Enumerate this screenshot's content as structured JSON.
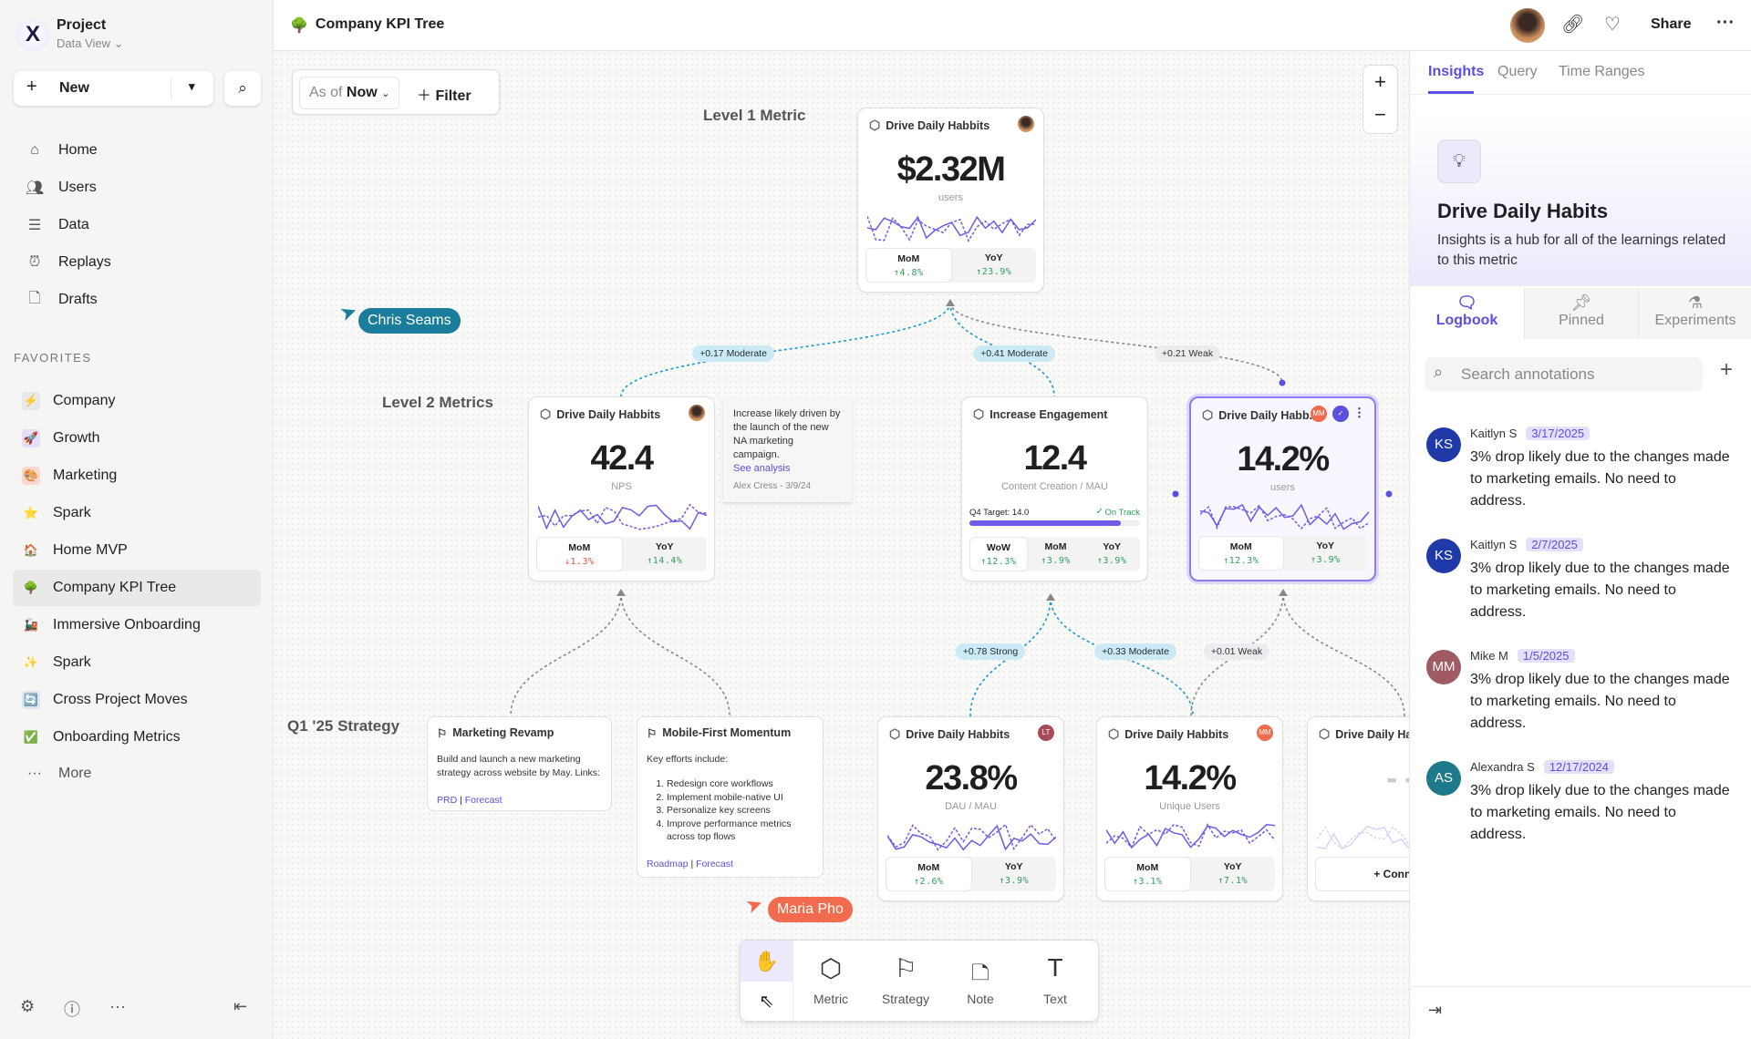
{
  "sidebar": {
    "project": "Project",
    "view": "Data View",
    "new_label": "New",
    "nav": [
      {
        "label": "Home",
        "icon": "home-icon"
      },
      {
        "label": "Users",
        "icon": "users-icon"
      },
      {
        "label": "Data",
        "icon": "database-icon"
      },
      {
        "label": "Replays",
        "icon": "alarm-clock-icon"
      },
      {
        "label": "Drafts",
        "icon": "file-icon"
      }
    ],
    "favorites_label": "FAVORITES",
    "favorites": [
      {
        "label": "Company",
        "emoji": "⚡",
        "bg": "#e8e8e8"
      },
      {
        "label": "Growth",
        "emoji": "🚀",
        "bg": "#e5defa"
      },
      {
        "label": "Marketing",
        "emoji": "🎨",
        "bg": "#fbd8cf"
      },
      {
        "label": "Spark",
        "emoji": "⭐",
        "bg": "transparent"
      },
      {
        "label": "Home MVP",
        "emoji": "🏠",
        "bg": "transparent"
      },
      {
        "label": "Company KPI Tree",
        "emoji": "🌳",
        "bg": "transparent",
        "selected": true
      },
      {
        "label": "Immersive Onboarding",
        "emoji": "🚂",
        "bg": "transparent"
      },
      {
        "label": "Spark",
        "emoji": "✨",
        "bg": "transparent"
      },
      {
        "label": "Cross Project Moves",
        "emoji": "🔄",
        "bg": "#dbe7f7"
      },
      {
        "label": "Onboarding Metrics",
        "emoji": "✅",
        "bg": "transparent"
      }
    ],
    "more_label": "More"
  },
  "header": {
    "title": "Company KPI Tree",
    "share": "Share"
  },
  "canvas": {
    "as_of_label": "As of",
    "as_of_value": "Now",
    "filter_label": "Filter",
    "levels": {
      "l1": "Level 1 Metric",
      "l2": "Level 2 Metrics",
      "strategy": "Q1 '25 Strategy"
    },
    "cursors": [
      {
        "name": "Chris Seams",
        "color": "#1a7d9c"
      },
      {
        "name": "Maria Pho",
        "color": "#f26b4f"
      }
    ],
    "edges": [
      "+0.17 Moderate",
      "+0.41 Moderate",
      "+0.21 Weak",
      "+0.78 Strong",
      "+0.33 Moderate",
      "+0.01 Weak"
    ],
    "metrics": [
      {
        "title": "Drive Daily Habbits",
        "value": "$2.32M",
        "unit": "users",
        "avatar": "photo",
        "stats": [
          {
            "label": "MoM",
            "value": "↑4.8%",
            "dir": "up"
          },
          {
            "label": "YoY",
            "value": "↑23.9%",
            "dir": "up"
          }
        ]
      },
      {
        "title": "Drive Daily Habbits",
        "value": "42.4",
        "unit": "NPS",
        "avatar": "photo",
        "stats": [
          {
            "label": "MoM",
            "value": "↓1.3%",
            "dir": "down"
          },
          {
            "label": "YoY",
            "value": "↑14.4%",
            "dir": "up"
          }
        ]
      },
      {
        "title": "Increase Engagement",
        "value": "12.4",
        "unit": "Content Creation / MAU",
        "target_label": "Q4 Target: 14.0",
        "target_status": "On Track",
        "target_progress": 0.89,
        "stats": [
          {
            "label": "WoW",
            "value": "↑12.3%",
            "dir": "up"
          },
          {
            "label": "MoM",
            "value": "↑3.9%",
            "dir": "up"
          },
          {
            "label": "YoY",
            "value": "↑3.9%",
            "dir": "up"
          }
        ]
      },
      {
        "title": "Drive Daily Habb..",
        "value": "14.2%",
        "unit": "users",
        "avatar": "MM",
        "avatar_color": "#f26b4f",
        "verified": true,
        "selected": true,
        "stats": [
          {
            "label": "MoM",
            "value": "↑12.3%",
            "dir": "up"
          },
          {
            "label": "YoY",
            "value": "↑3.9%",
            "dir": "up"
          }
        ]
      },
      {
        "title": "Drive Daily Habbits",
        "value": "23.8%",
        "unit": "DAU / MAU",
        "avatar": "LT",
        "avatar_color": "#a84a5a",
        "stats": [
          {
            "label": "MoM",
            "value": "↑2.6%",
            "dir": "up"
          },
          {
            "label": "YoY",
            "value": "↑3.9%",
            "dir": "up"
          }
        ]
      },
      {
        "title": "Drive Daily Habbits",
        "value": "14.2%",
        "unit": "Unique Users",
        "avatar": "MM",
        "avatar_color": "#f26b4f",
        "stats": [
          {
            "label": "MoM",
            "value": "↑3.1%",
            "dir": "up"
          },
          {
            "label": "YoY",
            "value": "↑7.1%",
            "dir": "up"
          }
        ]
      },
      {
        "title": "Drive Daily Habbits",
        "value": "- -",
        "unit": "",
        "connect": "+ Connect"
      }
    ],
    "note": {
      "text": "Increase likely driven by the launch of the new NA marketing campaign.",
      "link": "See analysis",
      "author": "Alex Cress - 3/9/24"
    },
    "strategies": [
      {
        "title": "Marketing Revamp",
        "body": "Build and launch a new marketing strategy across website by May. Links:",
        "links": [
          "PRD",
          "Forecast"
        ]
      },
      {
        "title": "Mobile-First Momentum",
        "body": "Key efforts include:",
        "items": [
          "Redesign core workflows",
          "Implement mobile-native UI",
          "Personalize key screens",
          "Improve performance metrics across top flows"
        ],
        "links": [
          "Roadmap",
          "Forecast"
        ]
      }
    ],
    "toolbar": [
      "Metric",
      "Strategy",
      "Note",
      "Text"
    ]
  },
  "right": {
    "tabs": [
      "Insights",
      "Query",
      "Time Ranges"
    ],
    "title": "Drive Daily Habits",
    "desc": "Insights is a hub for all of the learnings related to this metric",
    "subtabs": [
      "Logbook",
      "Pinned",
      "Experiments"
    ],
    "search_placeholder": "Search annotations",
    "annotations": [
      {
        "initials": "KS",
        "color": "#1f3aa8",
        "author": "Kaitlyn S",
        "date": "3/17/2025",
        "text": "3% drop likely due to the changes made to marketing emails. No need to address."
      },
      {
        "initials": "KS",
        "color": "#1f3aa8",
        "author": "Kaitlyn S",
        "date": "2/7/2025",
        "text": "3% drop likely due to the changes made to marketing emails. No need to address."
      },
      {
        "initials": "MM",
        "color": "#a05a64",
        "author": "Mike M",
        "date": "1/5/2025",
        "text": "3% drop likely due to the changes made to marketing emails. No need to address."
      },
      {
        "initials": "AS",
        "color": "#1d7a8c",
        "author": "Alexandra S",
        "date": "12/17/2024",
        "text": "3% drop likely due to the changes made to marketing emails. No need to address."
      }
    ]
  },
  "colors": {
    "accent": "#5b4fe0",
    "line": "#6c5ce7",
    "edge_blue": "#1a9ad6",
    "edge_gray": "#888888"
  }
}
